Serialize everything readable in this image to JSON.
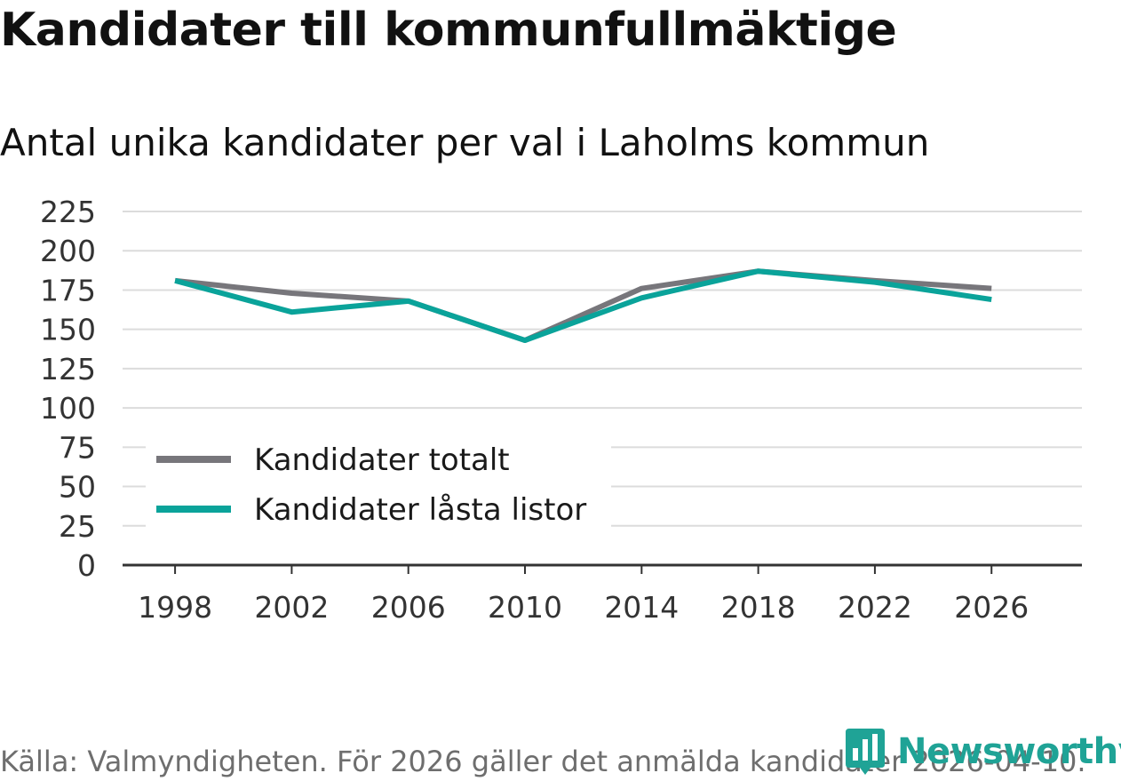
{
  "header": {
    "title": "Kandidater till kommunfullmäktige",
    "subtitle": "Antal unika kandidater per val i Laholms kommun"
  },
  "footer": {
    "source": "Källa: Valmyndigheten. För 2026 gäller det anmälda kandidater 2026-04-10."
  },
  "brand": {
    "name": "Newsworthy"
  },
  "colors": {
    "series_total": "#77767b",
    "series_locked": "#0aa39a",
    "grid": "#dcdcdc",
    "axis": "#333333",
    "brand": "#1fa396"
  },
  "chart_data": {
    "type": "line",
    "title": "Kandidater till kommunfullmäktige",
    "subtitle": "Antal unika kandidater per val i Laholms kommun",
    "xlabel": "",
    "ylabel": "",
    "x": [
      1998,
      2002,
      2006,
      2010,
      2014,
      2018,
      2022,
      2026
    ],
    "x_ticks": [
      "1998",
      "2002",
      "2006",
      "2010",
      "2014",
      "2018",
      "2022",
      "2026"
    ],
    "y_ticks": [
      "0",
      "25",
      "50",
      "75",
      "100",
      "125",
      "150",
      "175",
      "200",
      "225"
    ],
    "ylim": [
      0,
      225
    ],
    "xlim": [
      1996.2,
      2029.1
    ],
    "grid": true,
    "legend_position": "bottom-left",
    "series": [
      {
        "name": "Kandidater totalt",
        "color": "#77767b",
        "values": [
          181,
          173,
          168,
          143,
          176,
          187,
          181,
          176
        ]
      },
      {
        "name": "Kandidater låsta listor",
        "color": "#0aa39a",
        "values": [
          181,
          161,
          168,
          143,
          170,
          187,
          180,
          169
        ]
      }
    ]
  }
}
